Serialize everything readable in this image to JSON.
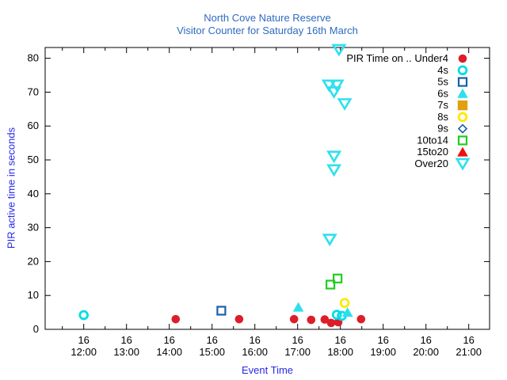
{
  "chart_data": {
    "type": "scatter",
    "title": "North Cove Nature Reserve",
    "subtitle": "Visitor Counter for Saturday 16th March",
    "xlabel": "Event Time",
    "ylabel": "PIR active time in seconds",
    "x_tick_day": "16",
    "x_tick_times": [
      "12:00",
      "13:00",
      "14:00",
      "15:00",
      "16:00",
      "17:00",
      "18:00",
      "19:00",
      "20:00",
      "21:00"
    ],
    "x_minor_tick_minutes": 30,
    "y_ticks": [
      0,
      10,
      20,
      30,
      40,
      50,
      60,
      70,
      80
    ],
    "ylim": [
      0,
      83.2
    ],
    "xlim_hours": [
      11.09,
      21.49
    ],
    "grid": false,
    "legend_position": "top-right-inside",
    "legend_title_prefix": "PIR Time on .. ",
    "series": [
      {
        "name": "Under4",
        "legend_label": "PIR Time on .. Under4",
        "marker": "circle-filled",
        "color": "#dc1e28",
        "points": [
          [
            "14:09",
            3.0
          ],
          [
            "15:38",
            3.0
          ],
          [
            "16:55",
            3.0
          ],
          [
            "17:19",
            2.8
          ],
          [
            "17:38",
            2.9
          ],
          [
            "17:47",
            1.9
          ],
          [
            "17:57",
            2.1
          ],
          [
            "18:29",
            3.0
          ]
        ]
      },
      {
        "name": "4s",
        "legend_label": "4s",
        "marker": "circle-open",
        "color": "#00dde6",
        "points": [
          [
            "12:00",
            4.2
          ],
          [
            "17:55",
            4.3
          ],
          [
            "18:02",
            4.0
          ]
        ]
      },
      {
        "name": "5s",
        "legend_label": "5s",
        "marker": "square-open",
        "color": "#1a5fa8",
        "points": [
          [
            "15:13",
            5.5
          ]
        ]
      },
      {
        "name": "6s",
        "legend_label": "6s",
        "marker": "triangle-up-filled",
        "color": "#2ee0ee",
        "points": [
          [
            "17:01",
            6.5
          ],
          [
            "18:10",
            5.0
          ]
        ]
      },
      {
        "name": "7s",
        "legend_label": "7s",
        "marker": "square-filled",
        "color": "#e0a010",
        "points": []
      },
      {
        "name": "8s",
        "legend_label": "8s",
        "marker": "circle-open",
        "color": "#ffe800",
        "points": [
          [
            "18:06",
            7.8
          ]
        ]
      },
      {
        "name": "9s",
        "legend_label": "9s",
        "marker": "diamond-open",
        "color": "#1a5fa8",
        "points": []
      },
      {
        "name": "10to14",
        "legend_label": "10to14",
        "marker": "square-open",
        "color": "#22cc22",
        "points": [
          [
            "17:46",
            13.2
          ],
          [
            "17:56",
            15.0
          ]
        ]
      },
      {
        "name": "15to20",
        "legend_label": "15to20",
        "marker": "triangle-up-filled",
        "color": "#f01010",
        "points": []
      },
      {
        "name": "Over20",
        "legend_label": "Over20",
        "marker": "triangle-down-open",
        "color": "#2ee0ee",
        "points": [
          [
            "17:45",
            26.5
          ],
          [
            "17:51",
            47.0
          ],
          [
            "17:51",
            51.0
          ],
          [
            "18:06",
            66.5
          ],
          [
            "17:51",
            70.0
          ],
          [
            "17:44",
            72.0
          ],
          [
            "17:55",
            72.0
          ],
          [
            "17:58",
            82.5
          ]
        ]
      }
    ],
    "colors": {
      "title_text": "#2e6bc0",
      "axis_label_text": "#2828e8",
      "tick_text": "#000000",
      "frame": "#000000",
      "background": "#ffffff"
    }
  }
}
